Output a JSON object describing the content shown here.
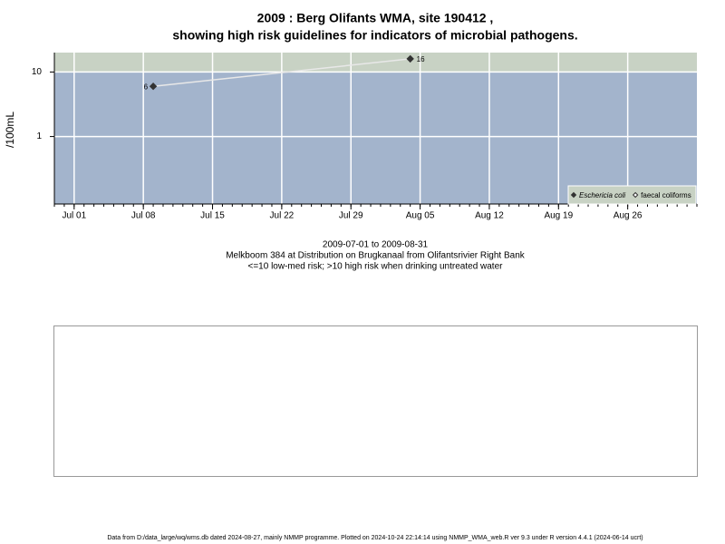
{
  "chart_data": {
    "type": "line",
    "title": "2009 : Berg Olifants WMA, site 190412 ,",
    "subtitle": "showing high risk guidelines for indicators of microbial pathogens.",
    "y_label": "/100mL",
    "x": [
      "2009-07-09",
      "2009-08-04"
    ],
    "series": [
      {
        "name": "Eschericia coli",
        "color": "#333333",
        "line_color": "#e8e8e8",
        "marker": "filled-diamond",
        "values": [
          6,
          16
        ]
      },
      {
        "name": "faecal coliforms",
        "color": "#333333",
        "line_color": "#e8e8e8",
        "marker": "open-diamond",
        "values": [
          null,
          null
        ]
      }
    ],
    "xlim": [
      "2009-06-29",
      "2009-09-02"
    ],
    "xticks": [
      {
        "value": "2009-07-01",
        "label": "Jul 01"
      },
      {
        "value": "2009-07-08",
        "label": "Jul 08"
      },
      {
        "value": "2009-07-15",
        "label": "Jul 15"
      },
      {
        "value": "2009-07-22",
        "label": "Jul 22"
      },
      {
        "value": "2009-07-29",
        "label": "Jul 29"
      },
      {
        "value": "2009-08-05",
        "label": "Aug 05"
      },
      {
        "value": "2009-08-12",
        "label": "Aug 12"
      },
      {
        "value": "2009-08-19",
        "label": "Aug 19"
      },
      {
        "value": "2009-08-26",
        "label": "Aug 26"
      }
    ],
    "ylim": [
      0.09,
      20
    ],
    "yticks": [
      1,
      10
    ],
    "log_y": true,
    "grid": true,
    "threshold": 10,
    "band_colors": {
      "above": "#c8d2c4",
      "below": "#a3b4cc"
    },
    "legend": "bottom-right",
    "caption": [
      "2009-07-01 to 2009-08-31",
      "Melkboom 384 at Distribution on Brugkanaal from Olifantsrivier Right Bank",
      "<=10 low-med risk; >10 high risk when drinking untreated water"
    ]
  },
  "footer": "Data from D:/data_large/wq/wms.db dated 2024-08-27, mainly NMMP programme. Plotted on 2024-10-24 22:14:14 using NMMP_WMA_web.R ver 9.3 under R version 4.4.1 (2024-06-14 ucrt)"
}
